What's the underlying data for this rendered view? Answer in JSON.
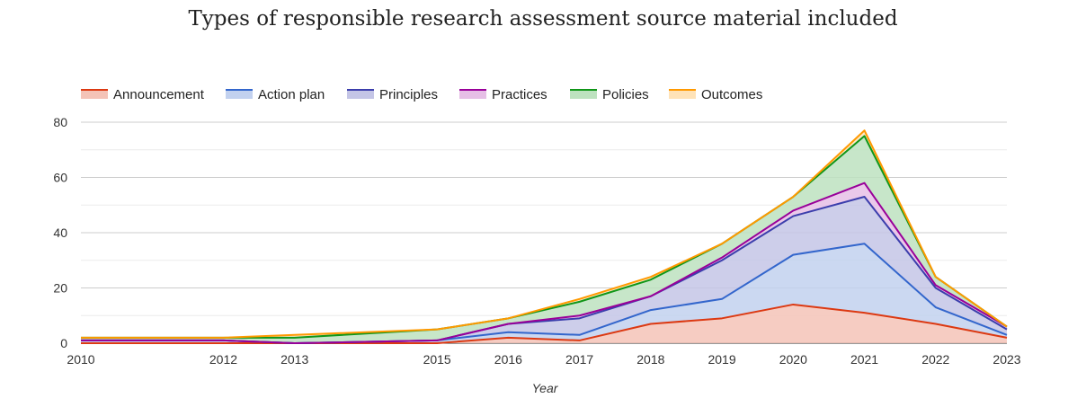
{
  "chart_data": {
    "type": "area",
    "stacked": true,
    "title": "Types of responsible research assessment source material included",
    "xlabel": "Year",
    "ylabel": "",
    "ylim": [
      0,
      80
    ],
    "yticks": [
      0,
      20,
      40,
      60,
      80
    ],
    "xlim": [
      2010,
      2023
    ],
    "xticks": [
      2010,
      2012,
      2013,
      2015,
      2016,
      2017,
      2018,
      2019,
      2020,
      2021,
      2022,
      2023
    ],
    "grid": true,
    "legend_position": "top",
    "x": [
      2010,
      2012,
      2013,
      2015,
      2016,
      2017,
      2018,
      2019,
      2020,
      2021,
      2022,
      2023
    ],
    "series": [
      {
        "name": "Announcement",
        "color": "#dc3912",
        "fill": "#f4c3b7",
        "values": [
          0,
          0,
          0,
          0,
          2,
          1,
          7,
          9,
          14,
          11,
          7,
          2
        ]
      },
      {
        "name": "Action plan",
        "color": "#3366cc",
        "fill": "#c2d1ef",
        "values": [
          1,
          1,
          0,
          1,
          2,
          2,
          5,
          7,
          18,
          25,
          6,
          1
        ]
      },
      {
        "name": "Principles",
        "color": "#3b3eac",
        "fill": "#c4c5e6",
        "values": [
          0,
          0,
          0,
          0,
          3,
          6,
          5,
          14,
          14,
          17,
          7,
          2
        ]
      },
      {
        "name": "Practices",
        "color": "#990099",
        "fill": "#e6bfe6",
        "values": [
          0,
          0,
          0,
          0,
          0,
          1,
          0,
          1,
          2,
          5,
          1,
          1
        ]
      },
      {
        "name": "Policies",
        "color": "#109618",
        "fill": "#bde2bf",
        "values": [
          1,
          1,
          2,
          4,
          2,
          5,
          6,
          5,
          5,
          17,
          3,
          0
        ]
      },
      {
        "name": "Outcomes",
        "color": "#ff9900",
        "fill": "#ffe3b8",
        "values": [
          0,
          0,
          1,
          0,
          0,
          1,
          1,
          0,
          0,
          2,
          0,
          0
        ]
      }
    ]
  }
}
